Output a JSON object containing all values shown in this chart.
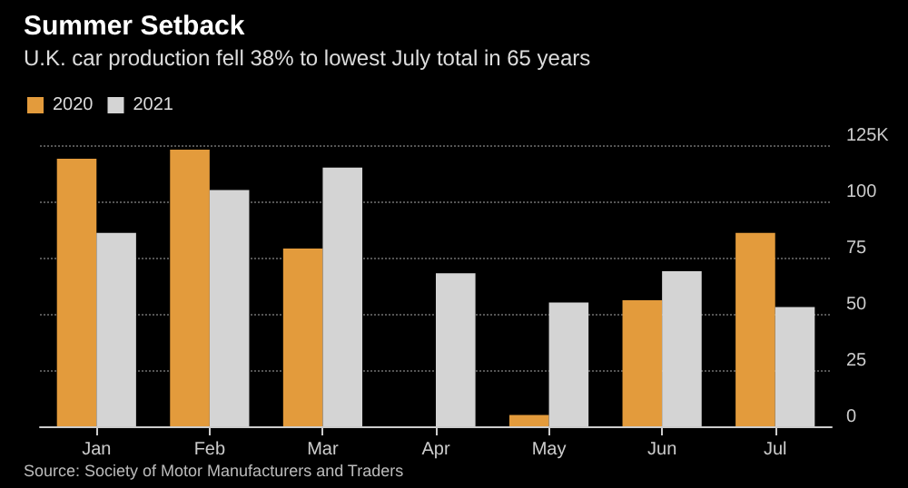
{
  "chart_data": {
    "type": "bar",
    "title": "Summer Setback",
    "subtitle": "U.K. car production fell 38% to lowest July total in 65 years",
    "categories": [
      "Jan",
      "Feb",
      "Mar",
      "Apr",
      "May",
      "Jun",
      "Jul"
    ],
    "series": [
      {
        "name": "2020",
        "color": "#e39b3c",
        "values": [
          119,
          123,
          79,
          0,
          5,
          56,
          86
        ]
      },
      {
        "name": "2021",
        "color": "#d4d4d4",
        "values": [
          86,
          105,
          115,
          68,
          55,
          69,
          53
        ]
      }
    ],
    "ylim": [
      0,
      125
    ],
    "yticks": [
      0,
      25,
      50,
      75,
      100,
      {
        "value": 125,
        "label": "125K"
      }
    ],
    "grid": "y",
    "legend": "top left",
    "annotations": [
      "Source: Society of Motor Manufacturers and Traders"
    ]
  }
}
